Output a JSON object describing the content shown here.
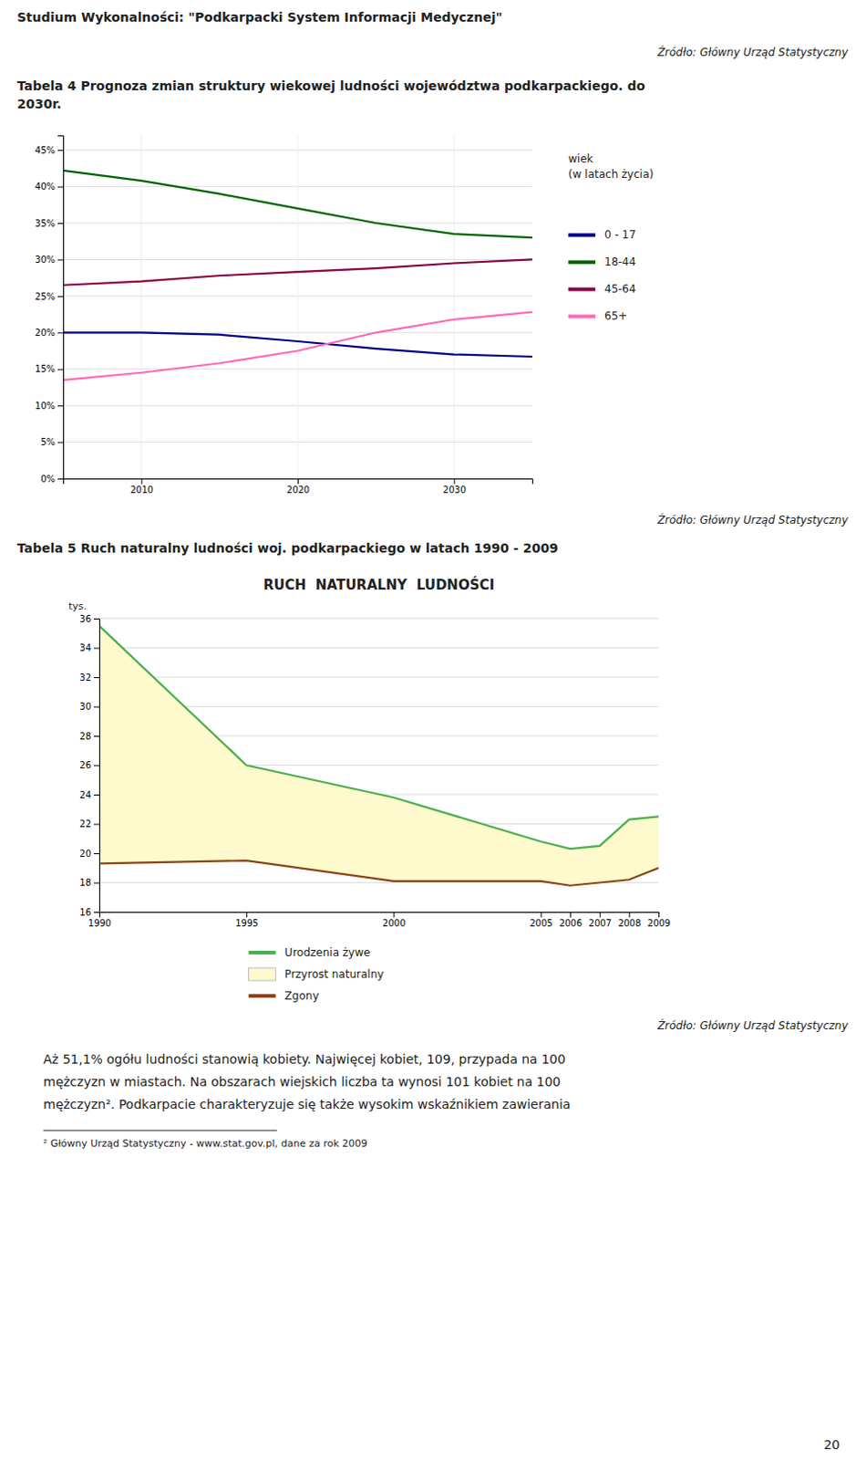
{
  "title": "Studium Wykonalności: \"Podkarpacki System Informacji Medycznej\"",
  "source": "Źródło: Główny Urząd Statystyczny",
  "chart_data": [
    {
      "type": "line",
      "caption": "Tabela 4 Prognoza zmian struktury wiekowej ludności województwa podkarpackiego. do\n2030r.",
      "legend_title": "wiek\n(w latach życia)",
      "legend": "right",
      "grid": true,
      "x": [
        2005,
        2010,
        2015,
        2020,
        2025,
        2030,
        2035
      ],
      "xlim": [
        2005,
        2035
      ],
      "xticks": [
        2010,
        2020,
        2030
      ],
      "ylim": [
        0,
        0.47
      ],
      "yticks": [
        {
          "value": 0,
          "label": "0%"
        },
        {
          "value": 0.05,
          "label": "5%"
        },
        {
          "value": 0.1,
          "label": "10%"
        },
        {
          "value": 0.15,
          "label": "15%"
        },
        {
          "value": 0.2,
          "label": "20%"
        },
        {
          "value": 0.25,
          "label": "25%"
        },
        {
          "value": 0.3,
          "label": "30%"
        },
        {
          "value": 0.35,
          "label": "35%"
        },
        {
          "value": 0.4,
          "label": "40%"
        },
        {
          "value": 0.45,
          "label": "45%"
        }
      ],
      "series": [
        {
          "name": "0 - 17",
          "color": "#00008B",
          "values": [
            0.2,
            0.2,
            0.197,
            0.188,
            0.178,
            0.17,
            0.167
          ]
        },
        {
          "name": "18-44",
          "color": "#006400",
          "values": [
            0.422,
            0.408,
            0.39,
            0.37,
            0.35,
            0.335,
            0.33
          ]
        },
        {
          "name": "45-64",
          "color": "#8B0040",
          "values": [
            0.265,
            0.27,
            0.278,
            0.283,
            0.288,
            0.295,
            0.3
          ]
        },
        {
          "name": "65+",
          "color": "#FF69B4",
          "values": [
            0.135,
            0.145,
            0.158,
            0.175,
            0.2,
            0.218,
            0.228
          ]
        }
      ]
    },
    {
      "type": "line",
      "caption": "Tabela 5 Ruch naturalny ludności woj. podkarpackiego w latach 1990 - 2009",
      "title": "RUCH  NATURALNY  LUDNOŚCI",
      "ylabel": "tys.",
      "legend": "bottom",
      "grid": "y",
      "x": [
        1990,
        1995,
        2000,
        2005,
        2006,
        2007,
        2008,
        2009
      ],
      "xlim": [
        1990,
        2009
      ],
      "xticks": [
        1990,
        1995,
        2000,
        2005,
        2006,
        2007,
        2008,
        2009
      ],
      "ylim": [
        16,
        36
      ],
      "yticks": [
        16,
        18,
        20,
        22,
        24,
        26,
        28,
        30,
        32,
        34,
        36
      ],
      "series": [
        {
          "name": "Urodzenia żywe",
          "color": "#4CAF50",
          "values": [
            35.5,
            26.0,
            23.8,
            20.8,
            20.3,
            20.5,
            22.3,
            22.5
          ]
        },
        {
          "name": "Przyrost naturalny",
          "type": "area",
          "color": "#FFFACD",
          "values": [
            35.5,
            26.0,
            23.8,
            20.8,
            20.3,
            20.5,
            22.3,
            22.5
          ],
          "base": [
            19.3,
            19.5,
            18.1,
            18.1,
            17.8,
            18.0,
            18.2,
            19.0
          ]
        },
        {
          "name": "Zgony",
          "color": "#8B4513",
          "values": [
            19.3,
            19.5,
            18.1,
            18.1,
            17.8,
            18.0,
            18.2,
            19.0
          ]
        }
      ]
    }
  ],
  "footer": [
    "Aż 51,1% ogółu ludności stanowią kobiety. Najwięcej kobiet, 109, przypada na 100",
    "mężczyzn w miastach. Na obszarach wiejskich liczba ta wynosi 101 kobiet na 100",
    "mężczyzn². Podkarpacie charakteryzuje się także wysokim wskaźnikiem zawierania"
  ],
  "footnote": "² Główny Urząd Statystyczny - www.stat.gov.pl, dane za rok 2009",
  "page_number": "20"
}
